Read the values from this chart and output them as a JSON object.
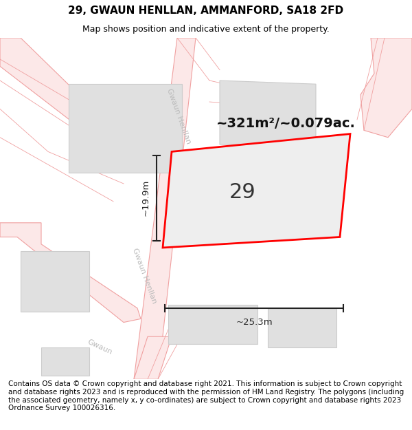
{
  "title": "29, GWAUN HENLLAN, AMMANFORD, SA18 2FD",
  "subtitle": "Map shows position and indicative extent of the property.",
  "footer": "Contains OS data © Crown copyright and database right 2021. This information is subject to Crown copyright and database rights 2023 and is reproduced with the permission of HM Land Registry. The polygons (including the associated geometry, namely x, y co-ordinates) are subject to Crown copyright and database rights 2023 Ordnance Survey 100026316.",
  "area_label": "~321m²/~0.079ac.",
  "number_label": "29",
  "width_label": "~25.3m",
  "height_label": "~19.9m",
  "bg_color": "#ffffff",
  "map_bg": "#ffffff",
  "road_fill": "#fce8e8",
  "road_edge": "#f0a0a0",
  "building_fill": "#e0e0e0",
  "building_edge": "#cccccc",
  "plot_fill": "#eeeeee",
  "plot_edge": "#ff0000",
  "dim_color": "#222222",
  "street_label_color": "#bbbbbb",
  "title_fontsize": 11,
  "subtitle_fontsize": 9,
  "footer_fontsize": 7.5
}
